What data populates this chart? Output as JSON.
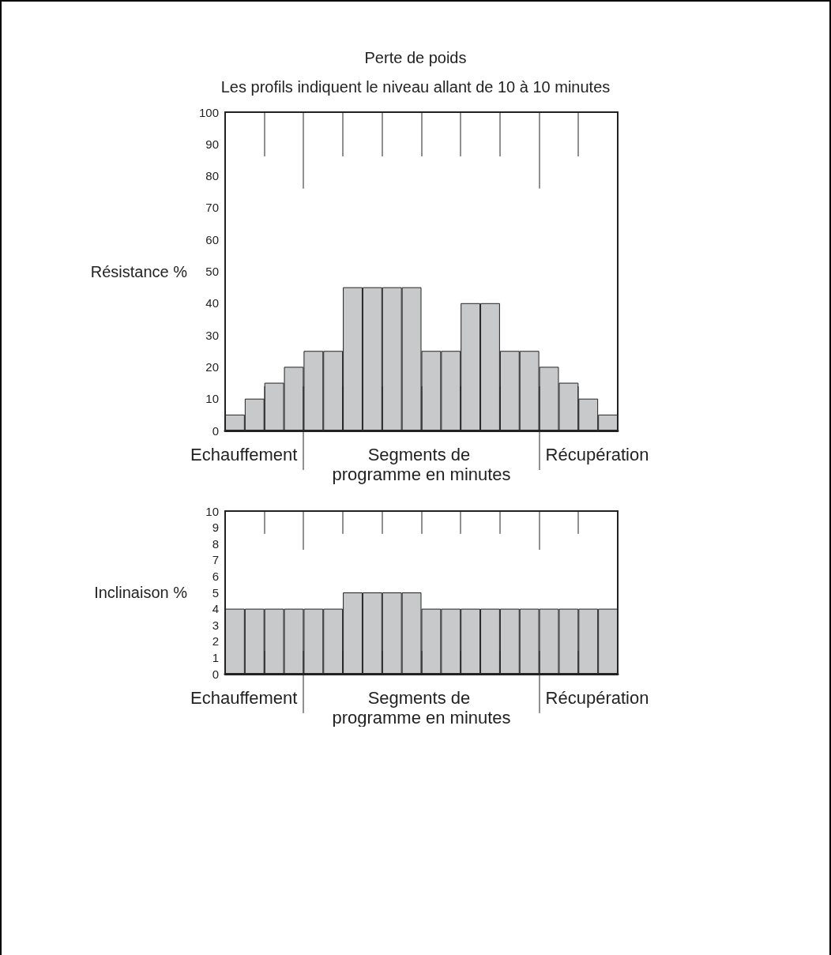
{
  "chart_data": [
    {
      "type": "bar",
      "title": "Perte de poids",
      "subtitle": "Les profils indiquent le niveau allant de 10 à 10 minutes",
      "ylabel": "Résistance %",
      "xlabel": "Segments de programme en minutes",
      "annotations": [
        "Echauffement",
        "Récupération"
      ],
      "categories": [
        null,
        null,
        null,
        null,
        null,
        null,
        null,
        null,
        null,
        null,
        null,
        null,
        null,
        null,
        null,
        null,
        null,
        null,
        null,
        null
      ],
      "values": [
        5,
        10,
        15,
        20,
        25,
        25,
        45,
        45,
        45,
        45,
        25,
        25,
        40,
        40,
        25,
        25,
        20,
        15,
        10,
        5
      ],
      "color": "#c8c9cb",
      "ylim": [
        0,
        100
      ],
      "yticks": [
        0,
        10,
        20,
        30,
        40,
        50,
        60,
        70,
        80,
        90,
        100
      ],
      "tick_labels": "y"
    },
    {
      "type": "bar",
      "ylabel": "Inclinaison %",
      "xlabel": "Segments de programme en minutes",
      "annotations": [
        "Echauffement",
        "Récupération"
      ],
      "categories": [
        null,
        null,
        null,
        null,
        null,
        null,
        null,
        null,
        null,
        null,
        null,
        null,
        null,
        null,
        null,
        null,
        null,
        null,
        null,
        null
      ],
      "values": [
        4,
        4,
        4,
        4,
        4,
        4,
        5,
        5,
        5,
        5,
        4,
        4,
        4,
        4,
        4,
        4,
        4,
        4,
        4,
        4
      ],
      "color": "#c8c9cb",
      "ylim": [
        0,
        10
      ],
      "yticks": [
        0,
        1,
        2,
        3,
        4,
        5,
        6,
        7,
        8,
        9,
        10
      ],
      "tick_labels": "y"
    }
  ]
}
